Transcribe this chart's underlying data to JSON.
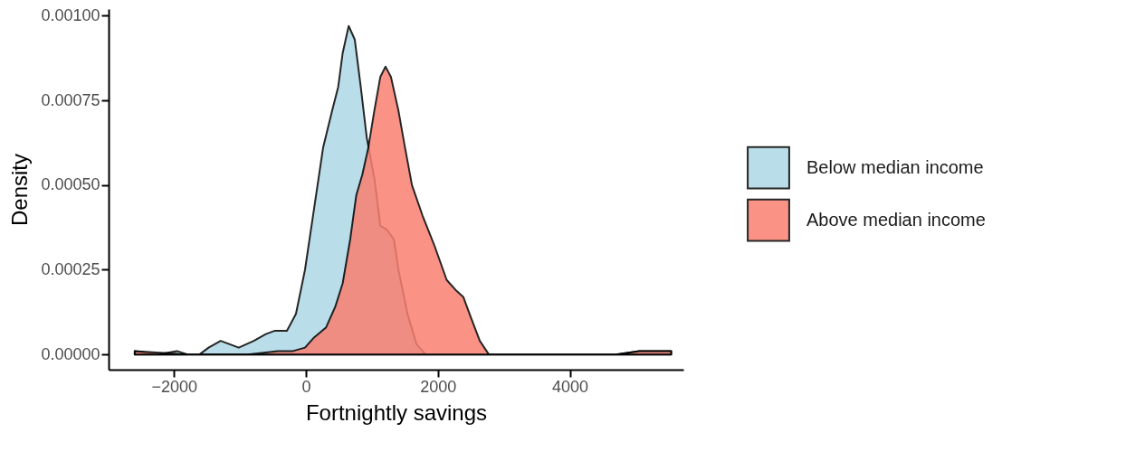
{
  "chart_data": {
    "type": "area",
    "xlabel": "Fortnightly savings",
    "ylabel": "Density",
    "xlim": [
      -2990,
      5720
    ],
    "xticks": [
      -2000,
      0,
      2000,
      4000
    ],
    "ylim": [
      -4.5e-05,
      0.00102
    ],
    "yticks": [
      {
        "value": 0,
        "label": "0.00000"
      },
      {
        "value": 0.00025,
        "label": "0.00025"
      },
      {
        "value": 0.0005,
        "label": "0.00050"
      },
      {
        "value": 0.00075,
        "label": "0.00075"
      },
      {
        "value": 0.001,
        "label": "0.00100"
      }
    ],
    "grid": false,
    "legend": "right",
    "series": [
      {
        "name": "Below median income",
        "color": "#add8e6",
        "x": [
          -2594,
          -2251,
          -1955,
          -1795,
          -1612,
          -1475,
          -1292,
          -1155,
          -1018,
          -790,
          -607,
          -470,
          -288,
          -151,
          -14,
          123,
          260,
          397,
          489,
          557,
          648,
          740,
          831,
          922,
          1037,
          1128,
          1219,
          1333,
          1402,
          1539,
          1676,
          1813,
          2500,
          4700,
          5055,
          5535
        ],
        "values": [
          1e-05,
          0,
          1e-05,
          0,
          0,
          2e-05,
          4e-05,
          3e-05,
          2e-05,
          4e-05,
          6e-05,
          7e-05,
          7e-05,
          0.00012,
          0.00025,
          0.00043,
          0.00061,
          0.00072,
          0.00079,
          0.00089,
          0.00097,
          0.00093,
          0.00079,
          0.00064,
          0.00052,
          0.00038,
          0.00037,
          0.00034,
          0.00025,
          0.00012,
          3e-05,
          0,
          0,
          0,
          1e-05,
          1e-05
        ]
      },
      {
        "name": "Above median income",
        "color": "#fa8072",
        "x": [
          -2594,
          -1795,
          -1338,
          -881,
          -425,
          -196,
          -14,
          123,
          306,
          443,
          557,
          671,
          763,
          854,
          945,
          1037,
          1128,
          1206,
          1288,
          1402,
          1493,
          1607,
          1767,
          1950,
          2133,
          2270,
          2384,
          2498,
          2635,
          2772,
          2909,
          4700,
          5055,
          5535
        ],
        "values": [
          1e-05,
          0,
          0,
          0,
          1e-05,
          1e-05,
          2e-05,
          5e-05,
          8e-05,
          0.00014,
          0.00021,
          0.00034,
          0.00047,
          0.00053,
          0.00061,
          0.00072,
          0.00082,
          0.00085,
          0.00082,
          0.00072,
          0.00062,
          0.0005,
          0.00041,
          0.00032,
          0.00022,
          0.00019,
          0.00017,
          0.00011,
          4e-05,
          0,
          0,
          0,
          1e-05,
          1e-05
        ]
      }
    ]
  }
}
